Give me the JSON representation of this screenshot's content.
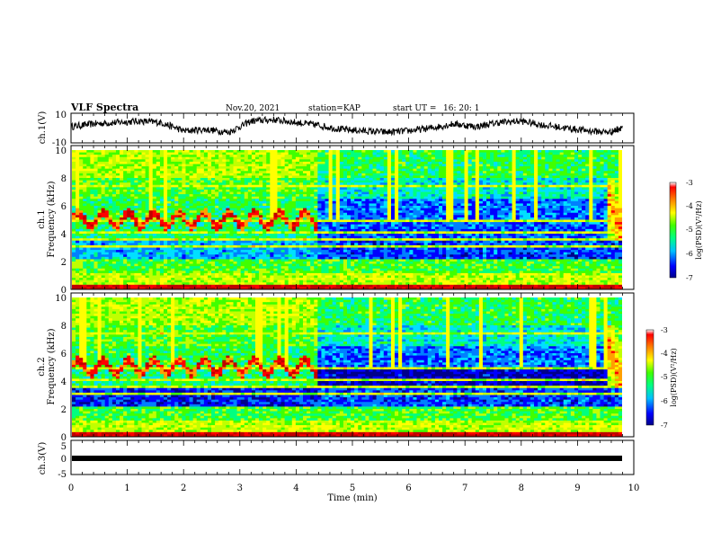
{
  "header": {
    "title": "VLF Spectra",
    "date": "Nov.20, 2021",
    "station": "station=KAP",
    "start_label": "start  UT =",
    "start_time": "16: 20: 1"
  },
  "chart_data": [
    {
      "type": "line",
      "ylabel": "ch.1(V)",
      "ylim": [
        -10,
        10
      ],
      "yticks": [
        "10",
        "-10"
      ],
      "xlim": [
        0,
        10
      ],
      "series": [
        {
          "x": [
            0,
            0.4,
            0.8,
            1.2,
            1.6,
            2.0,
            2.4,
            2.8,
            3.2,
            3.6,
            4.0,
            4.4,
            4.8,
            5.2,
            5.6,
            6.0,
            6.4,
            6.8,
            7.2,
            7.6,
            8.0,
            8.4,
            8.8,
            9.2,
            9.6,
            9.8
          ],
          "values": [
            1,
            3,
            4,
            5,
            4,
            -2,
            -1,
            -3,
            5,
            6,
            4,
            2,
            -1,
            -2,
            -3,
            -2,
            0,
            3,
            1,
            4,
            5,
            2,
            0,
            -2,
            -3,
            1
          ]
        }
      ]
    },
    {
      "type": "heatmap",
      "ylabel": "ch.1\nFrequency (kHz)",
      "ylim": [
        0,
        10
      ],
      "yticks": [
        "0",
        "2",
        "4",
        "6",
        "8",
        "10"
      ],
      "xlim": [
        0,
        10
      ],
      "colorbar": {
        "label": "log(PSD)(V²/Hz)",
        "range": [
          -7,
          -3
        ],
        "ticks": [
          "-3",
          "-4",
          "-5",
          "-6",
          "-7"
        ]
      }
    },
    {
      "type": "heatmap",
      "ylabel": "ch.2\nFrequency (kHz)",
      "ylim": [
        0,
        10
      ],
      "yticks": [
        "0",
        "2",
        "4",
        "6",
        "8",
        "10"
      ],
      "xlim": [
        0,
        10
      ],
      "colorbar": {
        "label": "log(PSD)(V²/Hz)",
        "range": [
          -7,
          -3
        ],
        "ticks": [
          "-3",
          "-4",
          "-5",
          "-6",
          "-7"
        ]
      }
    },
    {
      "type": "line",
      "ylabel": "ch.3(V)",
      "ylim": [
        -5,
        5
      ],
      "yticks": [
        "5",
        "0",
        "-5"
      ],
      "xlim": [
        0,
        10
      ],
      "series": [
        {
          "x": [
            0,
            9.8
          ],
          "values": [
            0,
            0
          ]
        }
      ]
    }
  ],
  "xaxis": {
    "label": "Time  (min)",
    "ticks": [
      "0",
      "1",
      "2",
      "3",
      "4",
      "5",
      "6",
      "7",
      "8",
      "9",
      "10"
    ]
  },
  "colors": {
    "colormap": [
      "#00008b",
      "#0000ff",
      "#0080ff",
      "#00e0ff",
      "#00ff80",
      "#40ff00",
      "#c0ff00",
      "#ffff00",
      "#ffa000",
      "#ff0000",
      "#c00000"
    ]
  }
}
